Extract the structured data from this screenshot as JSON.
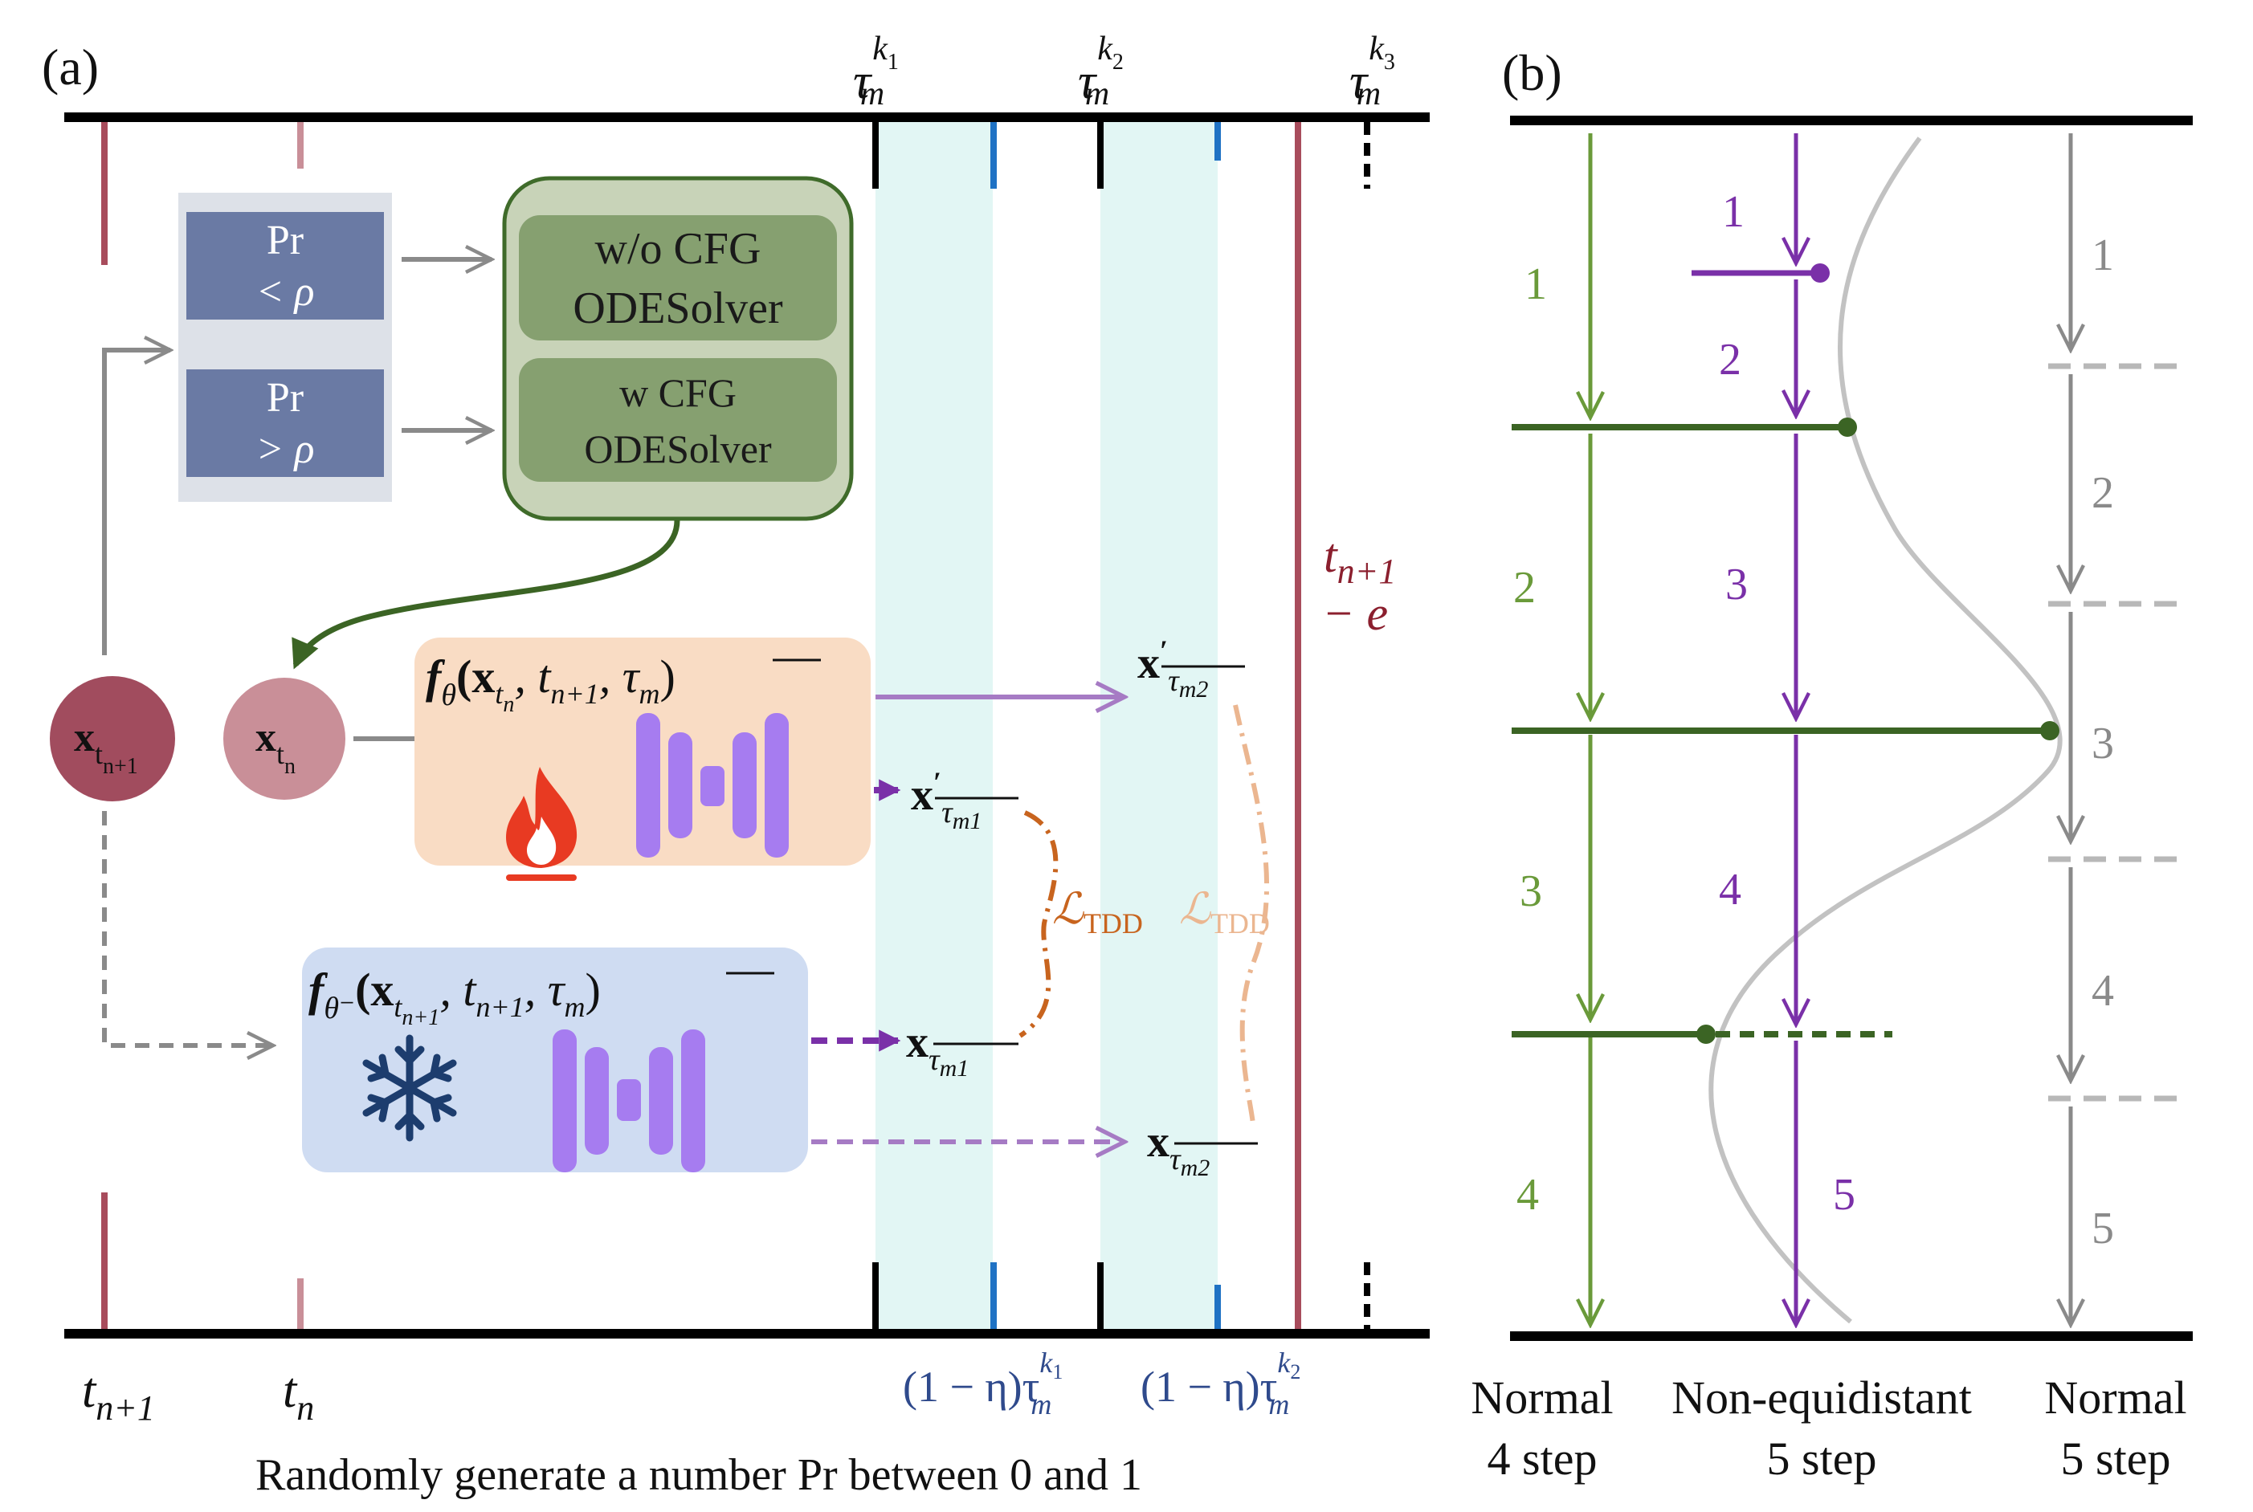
{
  "panel_a": {
    "label": "(a)",
    "tau_k1": {
      "base": "τ",
      "sup": "k",
      "supsub": "1",
      "sub": "m"
    },
    "tau_k2": {
      "base": "τ",
      "sup": "k",
      "supsub": "2",
      "sub": "m"
    },
    "tau_k3": {
      "base": "τ",
      "sup": "k",
      "supsub": "3",
      "sub": "m"
    },
    "pr_less": {
      "line1": "Pr",
      "line2": "< ρ"
    },
    "pr_greater": {
      "line1": "Pr",
      "line2": "> ρ"
    },
    "solver_wo": {
      "line1": "w/o CFG",
      "line2": "ODESolver"
    },
    "solver_w": {
      "line1": "w CFG",
      "line2": "ODESolver"
    },
    "node_xtn1": {
      "base": "x",
      "sub": "t",
      "subsub": "n+1"
    },
    "node_xtn": {
      "base": "x",
      "sub": "t",
      "subsub": "n"
    },
    "f_theta": {
      "text": "f",
      "sub": "θ",
      "args": "(x",
      "a_sub": "t",
      "a_subsub": "n",
      "rest": ", t",
      "rest_sub": "n+1",
      "tail": ", τ",
      "tail_sub": "m",
      "close": ")"
    },
    "f_theta_minus": {
      "text": "f",
      "sub": "θ⁻",
      "args": "(x",
      "a_sub": "t",
      "a_subsub": "n+1",
      "rest": ", t",
      "rest_sub": "n+1",
      "tail": ", τ",
      "tail_sub": "m",
      "close": ")"
    },
    "x_prime_m1": {
      "base": "x",
      "prime": "′",
      "sub": "τ",
      "subsub": "m1"
    },
    "x_prime_m2": {
      "base": "x",
      "prime": "′",
      "sub": "τ",
      "subsub": "m2"
    },
    "x_m1": {
      "base": "x",
      "sub": "τ",
      "subsub": "m1"
    },
    "x_m2": {
      "base": "x",
      "sub": "τ",
      "subsub": "m2"
    },
    "loss1": {
      "base": "ℒ",
      "sub": "TDD"
    },
    "loss2": {
      "base": "ℒ",
      "sub": "TDD"
    },
    "t_n1_e": {
      "line1": "t",
      "line1_sub": "n+1",
      "line2": "− e"
    },
    "axis_tn1": {
      "base": "t",
      "sub": "n+1"
    },
    "axis_tn": {
      "base": "t",
      "sub": "n"
    },
    "eta_k1": {
      "pre": "(1 − η)τ",
      "sup": "k",
      "supsub": "1",
      "sub": "m"
    },
    "eta_k2": {
      "pre": "(1 − η)τ",
      "sup": "k",
      "supsub": "2",
      "sub": "m"
    },
    "caption": "Randomly generate a number Pr between 0 and 1"
  },
  "panel_b": {
    "label": "(b)",
    "col_normal4": {
      "steps": [
        "1",
        "2",
        "3",
        "4"
      ],
      "caption_line1": "Normal",
      "caption_line2": "4 step"
    },
    "col_nonequi": {
      "steps": [
        "1",
        "2",
        "3",
        "4",
        "5"
      ],
      "caption_line1": "Non-equidistant",
      "caption_line2": "5 step"
    },
    "col_normal5": {
      "steps": [
        "1",
        "2",
        "3",
        "4",
        "5"
      ],
      "caption_line1": "Normal",
      "caption_line2": "5 step"
    }
  },
  "colors": {
    "green": "#6a9a3a",
    "dark_green": "#3b6424",
    "purple": "#7a30a8",
    "gray": "#8a8a8a",
    "maroon": "#a84c5c",
    "pink": "#c98f98",
    "pr_box": "#6a7aa4",
    "teal_band": "#e2f6f4",
    "blue_tick": "#1f72c4",
    "navy_text": "#2f4a8c",
    "orange_loss": "#c8641e",
    "peach_loss": "#ebb690"
  }
}
